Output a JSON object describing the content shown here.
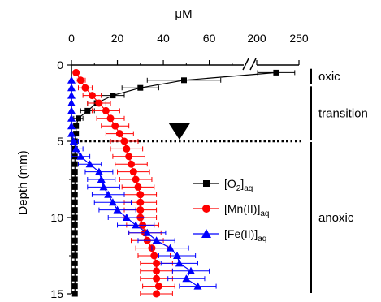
{
  "chart_data": {
    "type": "scatter",
    "title": "",
    "xlabel": "μM",
    "ylabel": "Depth (mm)",
    "x_axis": {
      "position": "top",
      "broken": true,
      "segments": [
        {
          "range": [
            0,
            75
          ],
          "ticks": [
            0,
            20,
            40,
            60
          ]
        },
        {
          "range": [
            200,
            250
          ],
          "ticks": [
            200,
            250
          ]
        }
      ]
    },
    "y_axis": {
      "range": [
        0,
        15
      ],
      "ticks": [
        0,
        5,
        10,
        15
      ],
      "inverted": true
    },
    "grid": false,
    "legend_position": "center-right",
    "threshold": {
      "depth": 5.0,
      "style": "dotted",
      "marker_x": 47
    },
    "zones": [
      {
        "label": "oxic",
        "from": 0.25,
        "to": 1.25
      },
      {
        "label": "transition",
        "from": 1.4,
        "to": 4.95
      },
      {
        "label": "anoxic",
        "from": 5.05,
        "to": 14.95
      }
    ],
    "series": [
      {
        "name": "[O2]aq",
        "legend": {
          "main": "[O",
          "sub1": "2",
          "mid": "]",
          "sub2": "aq"
        },
        "color": "#000000",
        "marker": "square",
        "points": [
          [
            223,
            0.5
          ],
          [
            49,
            1.0
          ],
          [
            30,
            1.5
          ],
          [
            18,
            2.0
          ],
          [
            11,
            2.5
          ],
          [
            7,
            3.0
          ],
          [
            3,
            3.5
          ],
          [
            2,
            4.0
          ],
          [
            2,
            4.5
          ],
          [
            1.5,
            5.0
          ],
          [
            1.5,
            5.5
          ],
          [
            1.5,
            6.0
          ],
          [
            1.5,
            6.5
          ],
          [
            1.5,
            7.0
          ],
          [
            1.5,
            7.5
          ],
          [
            1.5,
            8.0
          ],
          [
            1.5,
            8.5
          ],
          [
            1.5,
            9.0
          ],
          [
            1.5,
            9.5
          ],
          [
            1.5,
            10.0
          ],
          [
            1.5,
            10.5
          ],
          [
            1.5,
            11.0
          ],
          [
            1.5,
            11.5
          ],
          [
            1.5,
            12.0
          ],
          [
            1.5,
            12.5
          ],
          [
            1.5,
            13.0
          ],
          [
            1.5,
            13.5
          ],
          [
            1.5,
            14.0
          ],
          [
            1.5,
            14.5
          ],
          [
            1.5,
            15.0
          ]
        ],
        "xerr": [
          22,
          16,
          8,
          5,
          4,
          3,
          2,
          1,
          1,
          0.5,
          0.5,
          0.5,
          0.5,
          0.5,
          0.5,
          0.5,
          0.5,
          0.5,
          0.5,
          0.5,
          0.5,
          0.5,
          0.5,
          0.5,
          0.5,
          0.5,
          0.5,
          0.5,
          0.5,
          0.5
        ]
      },
      {
        "name": "[Mn(II)]aq",
        "legend": {
          "main": "[Mn(II)]",
          "sub1": "",
          "mid": "",
          "sub2": "aq"
        },
        "color": "#ff0000",
        "marker": "circle",
        "points": [
          [
            2,
            0.5
          ],
          [
            4,
            1.0
          ],
          [
            6,
            1.5
          ],
          [
            9,
            2.0
          ],
          [
            12,
            2.5
          ],
          [
            15,
            3.0
          ],
          [
            17,
            3.5
          ],
          [
            19,
            4.0
          ],
          [
            21,
            4.5
          ],
          [
            23,
            5.0
          ],
          [
            24,
            5.5
          ],
          [
            25,
            6.0
          ],
          [
            26,
            6.5
          ],
          [
            27,
            7.0
          ],
          [
            28,
            7.5
          ],
          [
            29,
            8.0
          ],
          [
            30,
            8.5
          ],
          [
            30,
            9.0
          ],
          [
            30,
            9.5
          ],
          [
            30,
            10.0
          ],
          [
            31,
            10.5
          ],
          [
            32,
            11.0
          ],
          [
            33,
            11.5
          ],
          [
            35,
            12.0
          ],
          [
            36,
            12.5
          ],
          [
            37,
            13.0
          ],
          [
            37,
            13.5
          ],
          [
            37,
            14.0
          ],
          [
            38,
            14.5
          ],
          [
            37,
            15.0
          ]
        ],
        "xerr": [
          1,
          2,
          3,
          4,
          5,
          6,
          6,
          6,
          6,
          6,
          7,
          7,
          7,
          7,
          7,
          7,
          7,
          7,
          7,
          7,
          7,
          7,
          7,
          7,
          7,
          7,
          7,
          7,
          7,
          7
        ]
      },
      {
        "name": "[Fe(II)]aq",
        "legend": {
          "main": "[Fe(II)]",
          "sub1": "",
          "mid": "",
          "sub2": "aq"
        },
        "color": "#0000ff",
        "marker": "triangle",
        "points": [
          [
            0,
            1.0
          ],
          [
            0,
            1.5
          ],
          [
            0,
            2.0
          ],
          [
            0,
            2.5
          ],
          [
            0,
            3.0
          ],
          [
            0,
            3.5
          ],
          [
            0,
            4.0
          ],
          [
            0,
            4.5
          ],
          [
            1,
            5.0
          ],
          [
            2,
            5.5
          ],
          [
            4,
            6.0
          ],
          [
            8,
            6.5
          ],
          [
            12,
            7.0
          ],
          [
            13,
            7.5
          ],
          [
            14,
            8.0
          ],
          [
            16,
            8.5
          ],
          [
            18,
            9.0
          ],
          [
            20,
            9.5
          ],
          [
            24,
            10.0
          ],
          [
            28,
            10.5
          ],
          [
            33,
            11.0
          ],
          [
            37,
            11.5
          ],
          [
            43,
            12.0
          ],
          [
            46,
            12.5
          ],
          [
            47,
            13.0
          ],
          [
            52,
            13.5
          ],
          [
            50,
            14.0
          ],
          [
            55,
            14.5
          ]
        ],
        "xerr": [
          0.3,
          0.3,
          0.3,
          0.3,
          0.3,
          0.3,
          0.3,
          0.3,
          2,
          3,
          4,
          5,
          6,
          6,
          7,
          7,
          8,
          8,
          8,
          8,
          8,
          8,
          8,
          8,
          8,
          8,
          8,
          8
        ]
      }
    ]
  }
}
